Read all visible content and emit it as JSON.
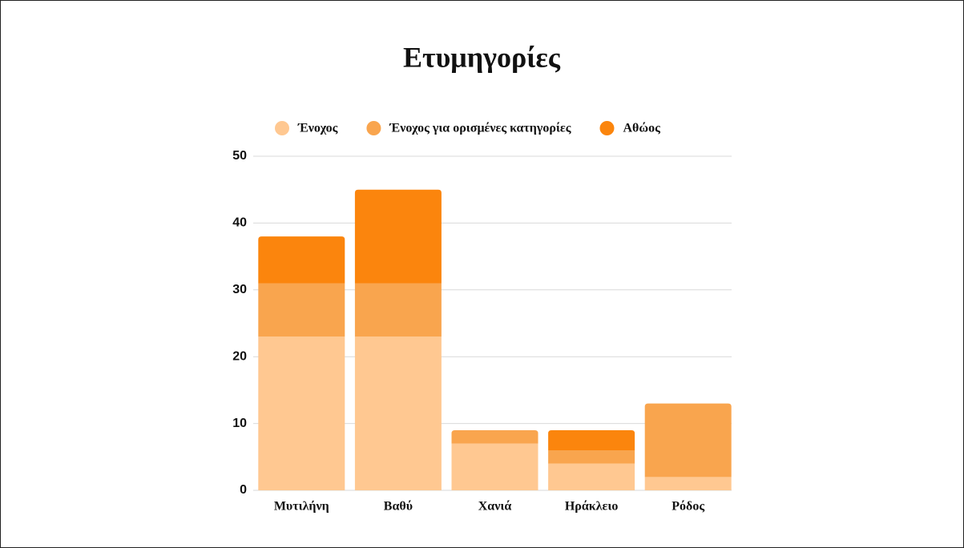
{
  "chart_data": {
    "type": "stacked_bar",
    "title": "Ετυμηγορίες",
    "categories": [
      "Μυτιλήνη",
      "Βαθύ",
      "Χανιά",
      "Ηράκλειο",
      "Ρόδος"
    ],
    "series": [
      {
        "name": "Ένοχος",
        "color": "#ffc891",
        "values": [
          23,
          23,
          7,
          4,
          2
        ]
      },
      {
        "name": "Ένοχος για ορισμένες κατηγορίες",
        "color": "#f9a54e",
        "values": [
          8,
          8,
          2,
          2,
          11
        ]
      },
      {
        "name": "Αθώος",
        "color": "#fb850d",
        "values": [
          7,
          14,
          0,
          3,
          0
        ]
      }
    ],
    "ylim": [
      0,
      50
    ],
    "yticks": [
      0,
      10,
      20,
      30,
      40,
      50
    ],
    "grid": true,
    "legend": "top"
  }
}
